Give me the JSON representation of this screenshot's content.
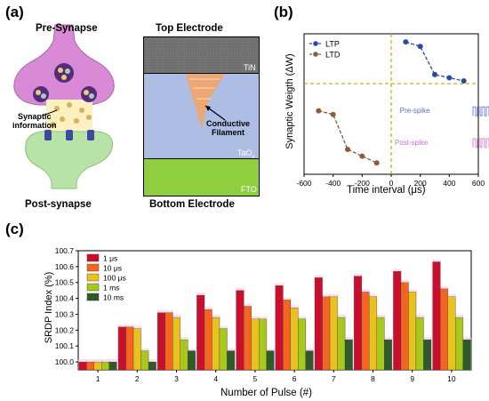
{
  "panel_a": {
    "label": "(a)",
    "pre_synapse": "Pre-Synapse",
    "post_synapse": "Post-synapse",
    "synaptic_info_line1": "Synaptic",
    "synaptic_info_line2": "information",
    "top_electrode": "Top Electrode",
    "bottom_electrode": "Bottom Electrode",
    "tin": "TiN",
    "tao": "TaO",
    "tao_sub": "x",
    "fto": "FTO",
    "conductive_line1": "Conductive",
    "conductive_line2": "Filament",
    "colors": {
      "tin": "#6e6e6e",
      "tao": "#aebde3",
      "fto": "#8fce3f",
      "pre": "#d98ad6",
      "post": "#b8e3a7",
      "vesicle": "#5a2a7a",
      "filament": "#f4a468"
    }
  },
  "panel_b": {
    "label": "(b)",
    "ylabel": "Synaptic Weigth (ΔW)",
    "xlabel": "Time interval (μs)",
    "legend": [
      "LTP",
      "LTD"
    ],
    "pre_spike": "Pre-spike",
    "post_spike": "Post-spike",
    "chart_data": {
      "type": "scatter",
      "xlim": [
        -600,
        600
      ],
      "xticks": [
        "-600",
        "-400",
        "-200",
        "0",
        "200",
        "400",
        "600"
      ],
      "series": [
        {
          "name": "LTP",
          "color": "#2e4aa8",
          "x": [
            100,
            200,
            300,
            400,
            500
          ],
          "y": [
            9.2,
            8.2,
            2.0,
            1.3,
            0.6
          ]
        },
        {
          "name": "LTD",
          "color": "#8c5a3c",
          "x": [
            -500,
            -400,
            -300,
            -200,
            -100
          ],
          "y": [
            -6.0,
            -6.8,
            -14.5,
            -16.0,
            -17.5
          ]
        }
      ]
    }
  },
  "panel_c": {
    "label": "(c)",
    "ylabel": "SRDP Index (%)",
    "xlabel": "Number of Pulse (#)",
    "chart_data": {
      "type": "bar",
      "categories": [
        "1",
        "2",
        "3",
        "4",
        "5",
        "6",
        "7",
        "8",
        "9",
        "10"
      ],
      "ylim": [
        99.95,
        100.7
      ],
      "yticks": [
        "100.0",
        "100.1",
        "100.2",
        "100.3",
        "100.4",
        "100.5",
        "100.6",
        "100.7"
      ],
      "series": [
        {
          "name": "1 μs",
          "color": "#c8102e",
          "values": [
            100.0,
            100.22,
            100.31,
            100.42,
            100.45,
            100.48,
            100.53,
            100.54,
            100.57,
            100.63
          ]
        },
        {
          "name": "10 μs",
          "color": "#f26522",
          "values": [
            100.0,
            100.22,
            100.31,
            100.33,
            100.35,
            100.39,
            100.41,
            100.44,
            100.5,
            100.46
          ]
        },
        {
          "name": "100 μs",
          "color": "#e8c21e",
          "values": [
            100.0,
            100.21,
            100.28,
            100.28,
            100.27,
            100.34,
            100.41,
            100.41,
            100.44,
            100.41
          ]
        },
        {
          "name": "1 ms",
          "color": "#a8c81e",
          "values": [
            100.0,
            100.07,
            100.14,
            100.21,
            100.27,
            100.27,
            100.28,
            100.28,
            100.28,
            100.28
          ]
        },
        {
          "name": "10 ms",
          "color": "#2f5a2a",
          "values": [
            100.0,
            100.0,
            100.07,
            100.07,
            100.07,
            100.07,
            100.14,
            100.14,
            100.14,
            100.14
          ]
        }
      ]
    }
  }
}
